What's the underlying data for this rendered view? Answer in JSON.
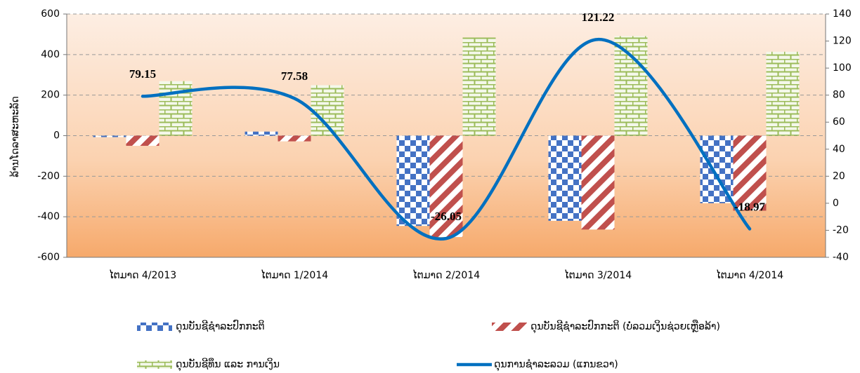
{
  "chart_data": {
    "type": "bar",
    "y_axis_label": "ລ້ານໂດລາສະຫະລັດ",
    "categories": [
      "ໄຕມາດ 4/2013",
      "ໄຕມາດ 1/2014",
      "ໄຕມາດ 2/2014",
      "ໄຕມາດ 3/2014",
      "ໄຕມາດ 4/2014"
    ],
    "series": [
      {
        "name": "ດຸນບັນຊີຊຳລະປົກກະຕິ",
        "type": "bar",
        "pattern": "checker",
        "color": "#4472c4",
        "values": [
          -7,
          20,
          -445,
          -420,
          -333
        ]
      },
      {
        "name": "ດຸນບັນຊີຊຳລະປົກກະຕິ (ບໍ່ລວມເງິນຊ່ວຍເຫຼືອລ້າ)",
        "type": "bar",
        "pattern": "stripes",
        "color": "#c0504d",
        "values": [
          -50,
          -28,
          -500,
          -463,
          -370
        ]
      },
      {
        "name": "ດຸນບັນຊີທຶນ ແລະ ການເງິນ",
        "type": "bar",
        "pattern": "brick",
        "color": "#9bbb59",
        "values": [
          269,
          249,
          484,
          491,
          414
        ]
      },
      {
        "name": "ດຸນການຊຳລະລວມ (ແກນຂວາ)",
        "type": "line",
        "axis": "y2",
        "smooth": true,
        "color": "#0070c0",
        "values": [
          79.15,
          77.58,
          -26.05,
          121.22,
          -18.97
        ]
      }
    ],
    "ylim": [
      -600,
      600
    ],
    "yticks": [
      -600,
      -400,
      -200,
      0,
      200,
      400,
      600
    ],
    "y2lim": [
      -40,
      140
    ],
    "y2ticks": [
      -40,
      -20,
      0,
      20,
      40,
      60,
      80,
      100,
      120,
      140
    ],
    "grid": true,
    "legend": "bottom"
  }
}
